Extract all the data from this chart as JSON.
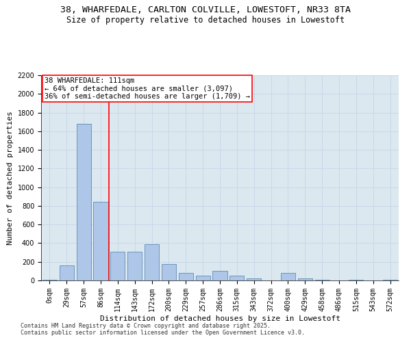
{
  "title_line1": "38, WHARFEDALE, CARLTON COLVILLE, LOWESTOFT, NR33 8TA",
  "title_line2": "Size of property relative to detached houses in Lowestoft",
  "xlabel": "Distribution of detached houses by size in Lowestoft",
  "ylabel": "Number of detached properties",
  "categories": [
    "0sqm",
    "29sqm",
    "57sqm",
    "86sqm",
    "114sqm",
    "143sqm",
    "172sqm",
    "200sqm",
    "229sqm",
    "257sqm",
    "286sqm",
    "315sqm",
    "343sqm",
    "372sqm",
    "400sqm",
    "429sqm",
    "458sqm",
    "486sqm",
    "515sqm",
    "543sqm",
    "572sqm"
  ],
  "values": [
    10,
    160,
    1680,
    840,
    310,
    310,
    390,
    175,
    80,
    50,
    100,
    50,
    20,
    0,
    80,
    20,
    10,
    0,
    5,
    0,
    5
  ],
  "bar_color": "#aec6e8",
  "bar_edge_color": "#5b8db8",
  "vline_x_index": 3.5,
  "annotation_text_line1": "38 WHARFEDALE: 111sqm",
  "annotation_text_line2": "← 64% of detached houses are smaller (3,097)",
  "annotation_text_line3": "36% of semi-detached houses are larger (1,709) →",
  "vline_color": "red",
  "annotation_box_color": "white",
  "annotation_box_edge_color": "red",
  "ylim": [
    0,
    2200
  ],
  "yticks": [
    0,
    200,
    400,
    600,
    800,
    1000,
    1200,
    1400,
    1600,
    1800,
    2000,
    2200
  ],
  "grid_color": "#c8d8e8",
  "background_color": "#dce8f0",
  "footer_line1": "Contains HM Land Registry data © Crown copyright and database right 2025.",
  "footer_line2": "Contains public sector information licensed under the Open Government Licence v3.0.",
  "title_fontsize": 9.5,
  "subtitle_fontsize": 8.5,
  "axis_label_fontsize": 8,
  "tick_fontsize": 7,
  "annotation_fontsize": 7.5,
  "footer_fontsize": 6
}
